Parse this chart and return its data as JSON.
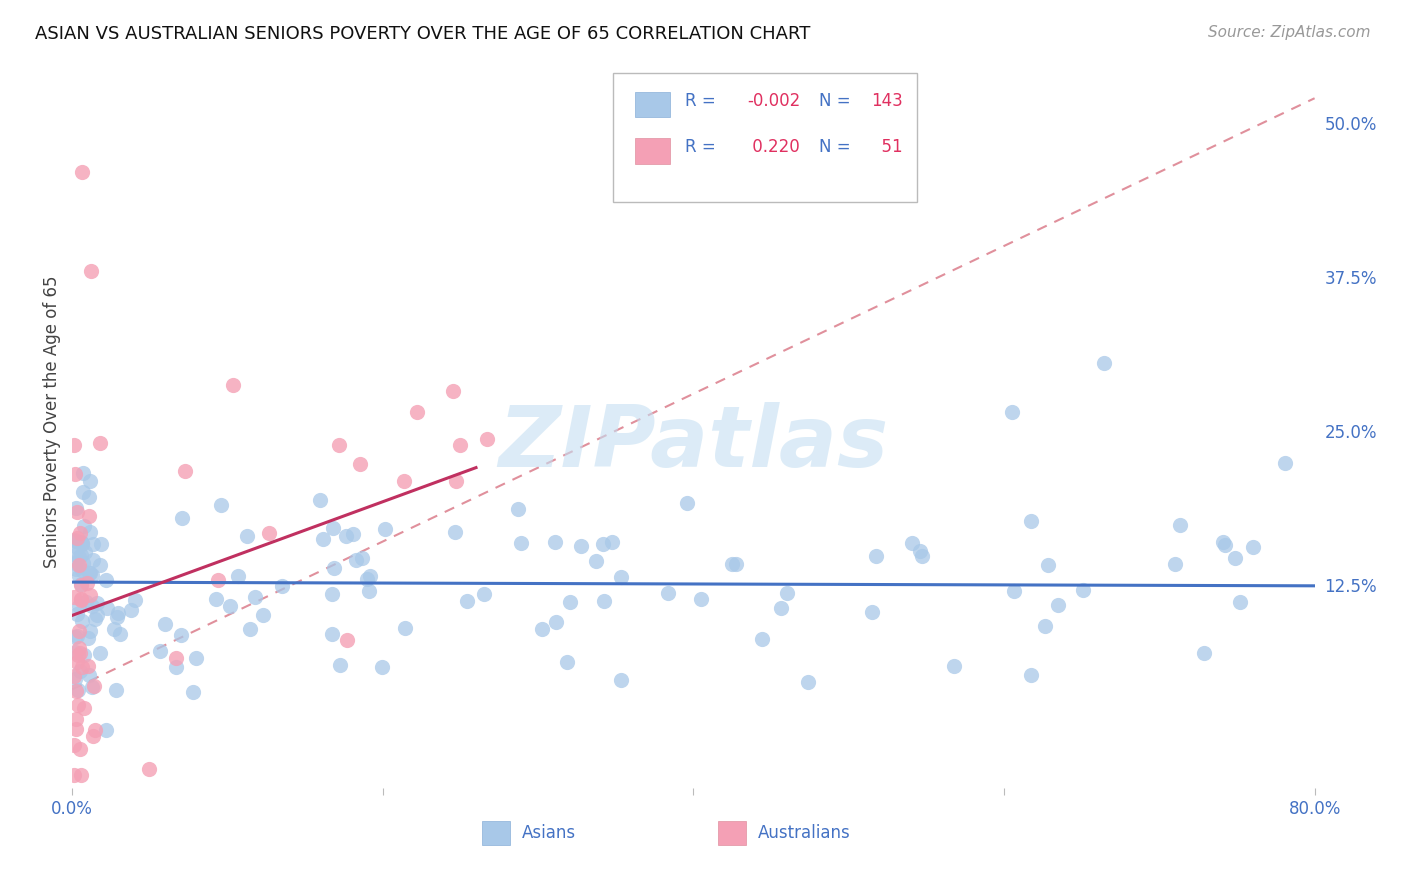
{
  "title": "ASIAN VS AUSTRALIAN SENIORS POVERTY OVER THE AGE OF 65 CORRELATION CHART",
  "source": "Source: ZipAtlas.com",
  "ylabel": "Seniors Poverty Over the Age of 65",
  "xlim": [
    0.0,
    0.8
  ],
  "ylim": [
    -0.04,
    0.555
  ],
  "asian_color": "#a8c8e8",
  "australian_color": "#f4a0b5",
  "asian_R": -0.002,
  "asian_N": 143,
  "australian_R": 0.22,
  "australian_N": 51,
  "asian_line_color": "#4472c4",
  "australian_solid_color": "#c03060",
  "australian_dashed_color": "#e0909c",
  "background_color": "#ffffff",
  "grid_color": "#d0d0d0",
  "ytick_vals": [
    0.0,
    0.125,
    0.25,
    0.375,
    0.5
  ],
  "ytick_labels": [
    "",
    "12.5%",
    "25.0%",
    "37.5%",
    "50.0%"
  ],
  "xtick_vals": [
    0.0,
    0.2,
    0.4,
    0.6,
    0.8
  ],
  "xtick_labels": [
    "0.0%",
    "",
    "",
    "",
    "80.0%"
  ],
  "legend_R1": "-0.002",
  "legend_N1": "143",
  "legend_R2": "0.220",
  "legend_N2": "51",
  "label_asians": "Asians",
  "label_australians": "Australians",
  "title_fontsize": 13,
  "tick_fontsize": 12,
  "legend_fontsize": 12,
  "ylabel_fontsize": 12,
  "source_fontsize": 11,
  "watermark_text": "ZIPatlas",
  "watermark_color": "#c5dff2",
  "tick_color": "#4472c4",
  "ylabel_color": "#444444",
  "title_color": "#111111",
  "source_color": "#999999"
}
